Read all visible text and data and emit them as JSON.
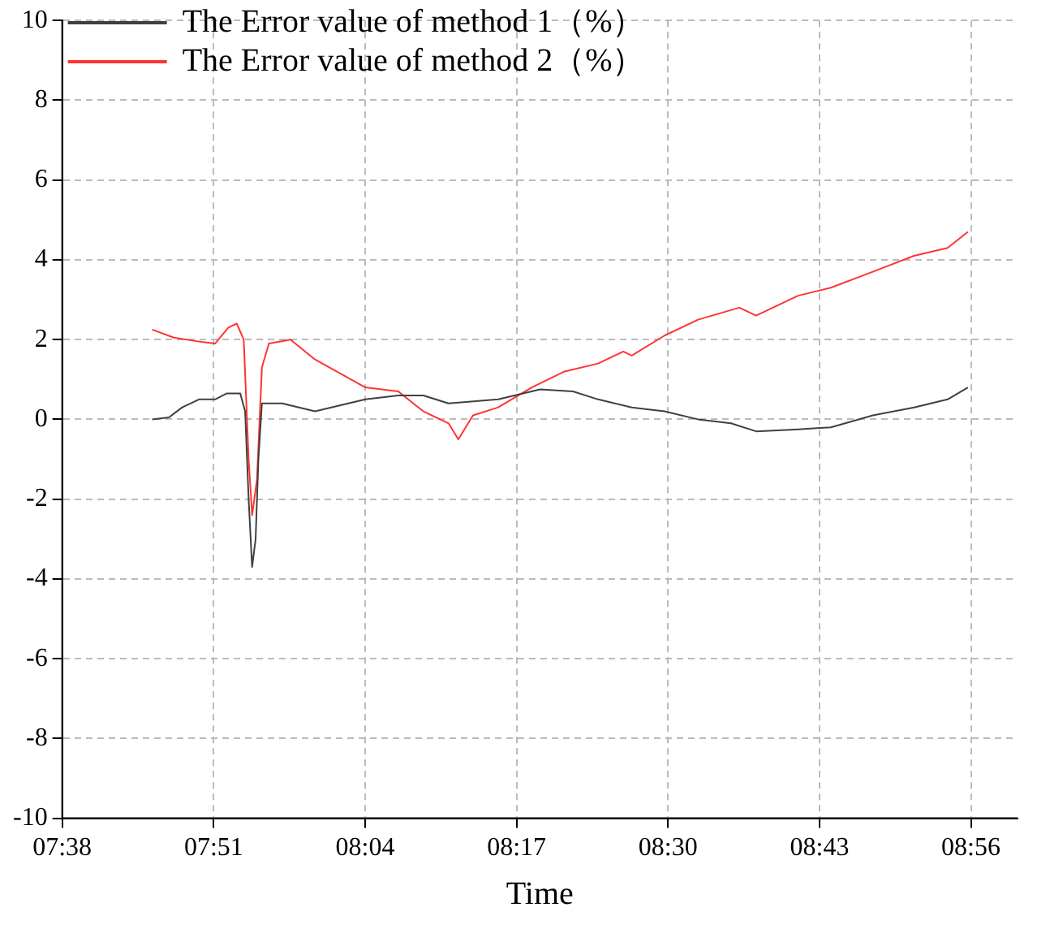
{
  "chart_data": {
    "type": "line",
    "xlabel": "Time",
    "legend": "top left",
    "grid": true,
    "marker": "none",
    "xlim": [
      7.6333,
      9.0
    ],
    "xticks": [
      {
        "value": 7.6333,
        "label": "07:38"
      },
      {
        "value": 7.85,
        "label": "07:51"
      },
      {
        "value": 8.0667,
        "label": "08:04"
      },
      {
        "value": 8.2833,
        "label": "08:17"
      },
      {
        "value": 8.5,
        "label": "08:30"
      },
      {
        "value": 8.7167,
        "label": "08:43"
      },
      {
        "value": 8.9333,
        "label": "08:56"
      }
    ],
    "ylim": [
      -10,
      10
    ],
    "yticks": [
      -10,
      -8,
      -6,
      -4,
      -2,
      0,
      2,
      4,
      6,
      8,
      10
    ],
    "series": [
      {
        "name": "The Error value of method 1（%）",
        "color": "#404040",
        "x": [
          7.762,
          7.786,
          7.805,
          7.829,
          7.852,
          7.869,
          7.888,
          7.895,
          7.9,
          7.905,
          7.91,
          7.914,
          7.919,
          7.948,
          7.995,
          8.067,
          8.114,
          8.15,
          8.186,
          8.257,
          8.317,
          8.364,
          8.4,
          8.448,
          8.495,
          8.543,
          8.59,
          8.626,
          8.686,
          8.733,
          8.793,
          8.852,
          8.9,
          8.929
        ],
        "values": [
          0.0,
          0.05,
          0.3,
          0.5,
          0.5,
          0.65,
          0.65,
          0.2,
          -2.0,
          -3.7,
          -3.0,
          -1.0,
          0.4,
          0.4,
          0.2,
          0.5,
          0.6,
          0.6,
          0.4,
          0.5,
          0.75,
          0.7,
          0.5,
          0.3,
          0.2,
          0.0,
          -0.1,
          -0.3,
          -0.25,
          -0.2,
          0.1,
          0.3,
          0.5,
          0.8
        ]
      },
      {
        "name": "The Error value of method 2（%）",
        "color": "#ff3333",
        "x": [
          7.762,
          7.793,
          7.829,
          7.852,
          7.871,
          7.883,
          7.893,
          7.9,
          7.905,
          7.912,
          7.919,
          7.929,
          7.96,
          7.995,
          8.067,
          8.114,
          8.15,
          8.186,
          8.2,
          8.221,
          8.257,
          8.305,
          8.352,
          8.4,
          8.436,
          8.448,
          8.495,
          8.543,
          8.602,
          8.626,
          8.686,
          8.733,
          8.793,
          8.852,
          8.9,
          8.929
        ],
        "values": [
          2.25,
          2.05,
          1.95,
          1.9,
          2.3,
          2.4,
          2.0,
          -1.0,
          -2.4,
          -1.5,
          1.3,
          1.9,
          2.0,
          1.5,
          0.8,
          0.7,
          0.2,
          -0.1,
          -0.5,
          0.1,
          0.3,
          0.8,
          1.2,
          1.4,
          1.7,
          1.6,
          2.1,
          2.5,
          2.8,
          2.6,
          3.1,
          3.3,
          3.7,
          4.1,
          4.3,
          4.7
        ]
      }
    ]
  }
}
